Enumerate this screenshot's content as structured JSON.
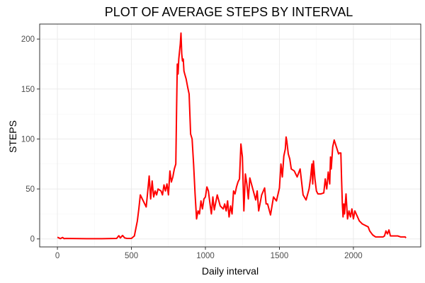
{
  "chart_data": {
    "type": "line",
    "title": "PLOT OF AVERAGE STEPS BY INTERVAL",
    "xlabel": "Daily interval",
    "ylabel": "STEPS",
    "xlim": [
      -120,
      2455
    ],
    "ylim": [
      -8,
      215
    ],
    "xticks": [
      0,
      500,
      1000,
      1500,
      2000
    ],
    "yticks": [
      0,
      50,
      100,
      150,
      200
    ],
    "grid": true,
    "line_color": "#ff0000",
    "series": [
      {
        "x": [
          0,
          20,
          35,
          45,
          60,
          100,
          200,
          300,
          400,
          415,
          425,
          440,
          455,
          470,
          500,
          520,
          540,
          550,
          560,
          600,
          610,
          620,
          630,
          640,
          650,
          660,
          670,
          680,
          700,
          710,
          720,
          730,
          740,
          750,
          760,
          770,
          780,
          790,
          800,
          805,
          810,
          815,
          820,
          830,
          835,
          840,
          845,
          850,
          855,
          860,
          870,
          880,
          890,
          900,
          910,
          920,
          930,
          940,
          950,
          960,
          970,
          980,
          990,
          1000,
          1010,
          1020,
          1030,
          1040,
          1050,
          1060,
          1080,
          1100,
          1120,
          1130,
          1140,
          1150,
          1160,
          1170,
          1180,
          1190,
          1200,
          1210,
          1220,
          1230,
          1240,
          1250,
          1260,
          1270,
          1280,
          1290,
          1300,
          1320,
          1340,
          1350,
          1360,
          1380,
          1400,
          1410,
          1420,
          1440,
          1460,
          1480,
          1500,
          1510,
          1520,
          1530,
          1540,
          1545,
          1550,
          1560,
          1570,
          1580,
          1600,
          1620,
          1640,
          1660,
          1680,
          1700,
          1710,
          1720,
          1725,
          1730,
          1740,
          1750,
          1760,
          1780,
          1800,
          1810,
          1820,
          1830,
          1840,
          1845,
          1850,
          1860,
          1870,
          1900,
          1905,
          1910,
          1915,
          1920,
          1925,
          1930,
          1935,
          1940,
          1950,
          1960,
          1970,
          1980,
          1990,
          2000,
          2010,
          2040,
          2060,
          2100,
          2110,
          2120,
          2130,
          2140,
          2150,
          2200,
          2210,
          2220,
          2230,
          2240,
          2250,
          2300,
          2320,
          2330,
          2340,
          2350,
          2355
        ],
        "y": [
          1.7,
          0.3,
          1.5,
          0.3,
          0.5,
          0.4,
          0.2,
          0.2,
          0.5,
          3.2,
          1,
          3.5,
          1,
          0.5,
          0.5,
          3,
          18,
          30,
          44,
          32,
          47,
          63,
          40,
          58,
          42,
          48,
          44,
          50,
          48,
          44,
          54,
          48,
          55,
          44,
          68,
          57,
          62,
          70,
          75,
          130,
          175,
          165,
          180,
          195,
          206,
          185,
          178,
          180,
          168,
          165,
          160,
          152,
          145,
          105,
          100,
          75,
          45,
          20,
          28,
          25,
          38,
          30,
          40,
          42,
          52,
          48,
          36,
          25,
          42,
          29,
          44,
          33,
          30,
          35,
          28,
          38,
          22,
          33,
          25,
          48,
          45,
          52,
          57,
          60,
          95,
          82,
          28,
          65,
          55,
          40,
          61,
          50,
          39,
          48,
          28,
          44,
          51,
          35,
          35,
          24,
          42,
          38,
          51,
          75,
          62,
          83,
          90,
          102,
          98,
          85,
          80,
          70,
          68,
          62,
          70,
          44,
          39,
          50,
          60,
          75,
          55,
          78,
          60,
          48,
          45,
          45,
          46,
          60,
          50,
          67,
          55,
          82,
          70,
          92,
          99,
          85,
          86,
          86,
          86,
          60,
          35,
          22,
          35,
          25,
          45,
          20,
          28,
          22,
          30,
          20,
          28,
          18,
          15,
          12,
          8,
          6,
          4,
          3,
          2,
          2,
          3,
          8,
          5,
          9,
          3,
          3,
          2,
          2,
          2,
          2,
          1
        ]
      }
    ]
  }
}
